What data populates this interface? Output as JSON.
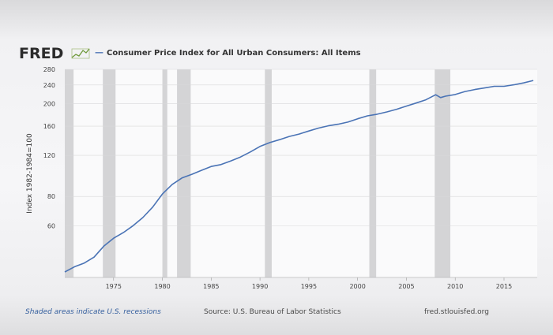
{
  "header": {
    "logo": "FRED",
    "legend_dash": "—",
    "series_title": "Consumer Price Index for All Urban Consumers: All Items"
  },
  "footer": {
    "recession_note": "Shaded areas indicate U.S. recessions",
    "source": "Source: U.S. Bureau of Labor Statistics",
    "site": "fred.stlouisfed.org"
  },
  "colors": {
    "line": "#4a73b5",
    "recession": "#d4d4d6",
    "grid": "#d8d8da"
  },
  "chart_data": {
    "type": "line",
    "title": "Consumer Price Index for All Urban Consumers: All Items",
    "ylabel": "Index 1982-1984=100",
    "xlabel": "",
    "y_scale": "log",
    "ylim": [
      36,
      280
    ],
    "xlim": [
      1970,
      2018.4
    ],
    "grid": true,
    "y_ticks": [
      60,
      80,
      120,
      160,
      200,
      240,
      280
    ],
    "x_ticks": [
      1975,
      1980,
      1985,
      1990,
      1995,
      2000,
      2005,
      2010,
      2015
    ],
    "recessions": [
      [
        1970.0,
        1970.9
      ],
      [
        1973.9,
        1975.2
      ],
      [
        1980.0,
        1980.5
      ],
      [
        1981.5,
        1982.9
      ],
      [
        1990.5,
        1991.2
      ],
      [
        2001.2,
        2001.9
      ],
      [
        2007.9,
        2009.5
      ]
    ],
    "series": [
      {
        "x": [
          1970,
          1971,
          1972,
          1973,
          1974,
          1975,
          1976,
          1977,
          1978,
          1979,
          1980,
          1981,
          1982,
          1983,
          1984,
          1985,
          1986,
          1987,
          1988,
          1989,
          1990,
          1991,
          1992,
          1993,
          1994,
          1995,
          1996,
          1997,
          1998,
          1999,
          2000,
          2001,
          2002,
          2003,
          2004,
          2005,
          2006,
          2007,
          2008,
          2008.5,
          2009,
          2010,
          2011,
          2012,
          2013,
          2014,
          2015,
          2016,
          2017,
          2018
        ],
        "values": [
          38.0,
          40.0,
          41.5,
          44.0,
          49.0,
          53.0,
          56.0,
          60.0,
          65.0,
          72.0,
          82.0,
          90.0,
          96.0,
          99.5,
          103.5,
          107.5,
          109.5,
          113.5,
          118.0,
          124.0,
          131.0,
          136.0,
          140.0,
          144.5,
          148.0,
          152.5,
          157.0,
          160.5,
          163.0,
          166.5,
          172.0,
          177.0,
          180.0,
          184.0,
          189.0,
          195.0,
          201.0,
          207.5,
          218.0,
          212.0,
          215.0,
          218.5,
          225.0,
          229.5,
          233.0,
          237.0,
          237.0,
          240.5,
          245.0,
          251.0
        ]
      }
    ]
  }
}
